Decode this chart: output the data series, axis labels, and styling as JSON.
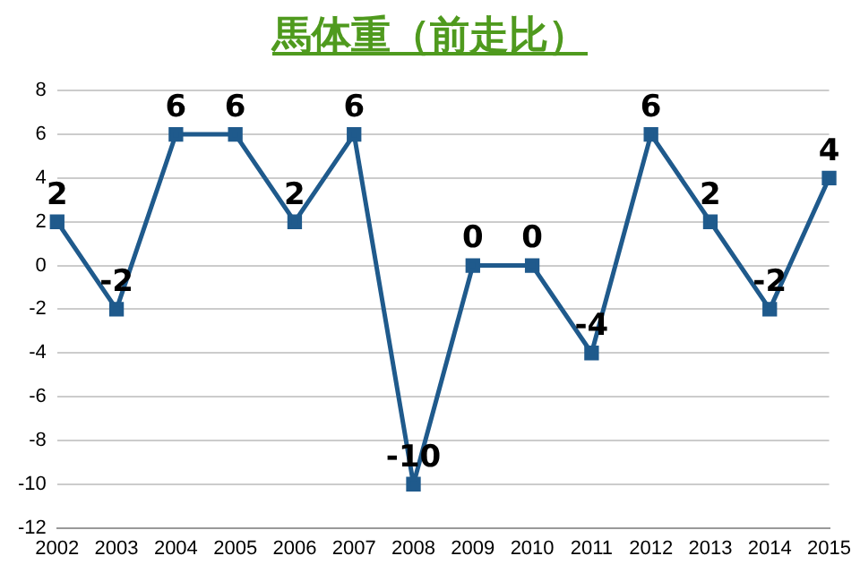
{
  "chart_data": {
    "type": "line",
    "title": "馬体重（前走比）",
    "categories": [
      "2002",
      "2003",
      "2004",
      "2005",
      "2006",
      "2007",
      "2008",
      "2009",
      "2010",
      "2011",
      "2012",
      "2013",
      "2014",
      "2015"
    ],
    "values": [
      2,
      -2,
      6,
      6,
      2,
      6,
      -10,
      0,
      0,
      -4,
      6,
      2,
      -2,
      4
    ],
    "color": "#1f5a8c",
    "marker": "square",
    "data_labels": true,
    "grid": "y",
    "ylim": [
      -12,
      8
    ],
    "yticks": [
      -12,
      -10,
      -8,
      -6,
      -4,
      -2,
      0,
      2,
      4,
      6,
      8
    ]
  }
}
